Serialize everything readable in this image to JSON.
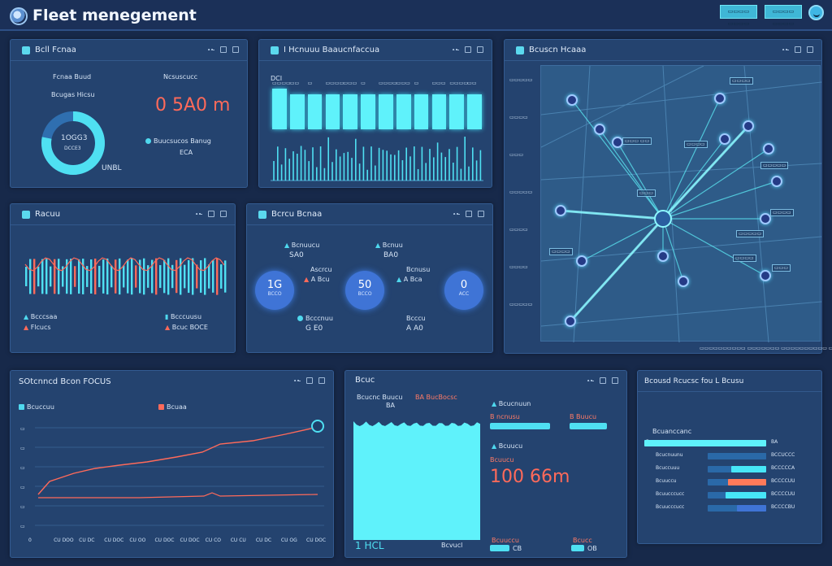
{
  "header": {
    "title": "Fleet menegement",
    "btn1": "▭▭▭▭ ▭▭▭▭",
    "btn2": "▭▭▭▭ ▭▭▭▭"
  },
  "panels": {
    "fleet": {
      "title": "Bcll Fcnaa",
      "label_left": "Fcnaa Buud",
      "label_left2": "Bcugas Hicsu",
      "ring_value": "1OGG3",
      "ring_sub": "DCCE3",
      "ring_unit": "UNBL",
      "label_right": "Ncsuscucc",
      "big_value": "0 5A0 m",
      "legend_text": "Buucsucos Banug",
      "legend_value": "ECA",
      "ring_pct": 0.78
    },
    "bars": {
      "title": "I Hcnuuu Baaucnfaccua",
      "top_label": "DCI",
      "bar_heights": [
        0.42,
        0.36,
        0.36,
        0.36,
        0.36,
        0.36,
        0.36,
        0.36,
        0.36,
        0.36,
        0.36,
        0.36
      ],
      "bar_labels": [
        "▭▭▭▭",
        "▭▭",
        "▭",
        "▭▭▭▭",
        "▭▭▭",
        "▭",
        "▭▭▭▭",
        "▭▭▭",
        "▭",
        "▭▭▭",
        "▭▭▭▭",
        "▭▭"
      ]
    },
    "spark": {
      "title": "Racuu",
      "legend1": "Bcccsaa",
      "legend2": "Flcucs",
      "legend3": "Bcccuusu",
      "legend4": "Bcuc BOCE"
    },
    "kpi": {
      "title": "Bcrcu Bcnaa",
      "top1_label": "Bcnuucu",
      "top1_value": "SA0",
      "top2_label": "Bcnuu",
      "top2_value": "BA0",
      "c1_value": "1G",
      "c1_sub": "BCCO",
      "c2_value": "50",
      "c2_sub": "BCCO",
      "c3_value": "0",
      "c3_sub": "ACC",
      "mid1_label": "Ascrcu",
      "mid1_value": "A Bcu",
      "mid2_label": "Bcnusu",
      "mid2_value": "A Bca",
      "bot1_label": "Bcccnuu",
      "bot1_value": "G E0",
      "bot2_label": "Bcccu",
      "bot2_value": "A A0"
    },
    "map": {
      "title": "Bcuscn Hcaaa",
      "footer": "▭▭▭▭▭▭▭▭▭▭ ▭▭▭▭▭▭▭ ▭▭▭▭▭▭▭▭▭▭ ▭▭▭▭▭▭",
      "side_labels": [
        "▭▭▭▭▭",
        "▭▭▭▭",
        "▭▭▭",
        "▭▭▭▭▭",
        "▭▭▭▭",
        "▭▭▭▭",
        "▭▭▭▭▭"
      ],
      "tags": [
        "▭▭▭▭",
        "▭▭▭ ▭▭",
        "▭▭▭▭",
        "▭▭▭▭▭",
        "▭▭▭▭",
        "▭▭▭",
        "▭▭▭▭▭",
        "▭▭▭▭",
        "▭▭▭▭",
        "▭▭▭"
      ]
    },
    "line": {
      "title": "SOtcnncd Bcon FOCUS",
      "legend1": "Bcuccuu",
      "legend2": "Bcuaa",
      "x_ticks": [
        "0",
        "CU DOO",
        "CU DC",
        "CU DOC",
        "CU OO",
        "CU DOC",
        "CU DOC",
        "CU CO",
        "CU CU",
        "CU DC",
        "CU OG",
        "CU DOC"
      ]
    },
    "area": {
      "title": "Bcuc",
      "label1": "Bcucnc Buucu",
      "label1_value": "BA",
      "label1_red": "BA BucBocsc",
      "bottom_left": "1 HCL",
      "bottom_mid": "Bcvucl",
      "bottom_red": "Bucrc",
      "r1_label": "Bcucnuun",
      "r1_red": "B ncnusu",
      "r1_red2": "B Buucu",
      "r2_label": "Bcuucu",
      "r2_red": "Bcuucu",
      "big_value": "100 66m",
      "b1_red": "Bcuuccu",
      "b1_value": "CB",
      "b2_red": "Bcucc",
      "b2_value": "OB"
    },
    "hbars": {
      "title": "Bcousd Rcucsc fou L Bcusu",
      "label0": "Bcuanccanc",
      "rows": [
        {
          "label": "Bcuacuccuu",
          "value": "BA"
        },
        {
          "label": "Bcucnuunu",
          "value": "BCCUCCC"
        },
        {
          "label": "Bcuccuuu",
          "value": "BCCCCCA"
        },
        {
          "label": "Bcuuccu",
          "value": "BCCCCUU"
        },
        {
          "label": "Bcuucccucc",
          "value": "BCCCCUU"
        },
        {
          "label": "Bcuucccucc",
          "value": "BCCCCBU"
        }
      ],
      "fills": [
        1.0,
        0.55,
        0.6,
        0.65,
        0.7,
        0.5
      ],
      "colors": [
        "#5ff2fb",
        "#2a69a8",
        "#47e6f7",
        "#ff7a5a",
        "#47e6f7",
        "#3f74d6"
      ]
    }
  }
}
